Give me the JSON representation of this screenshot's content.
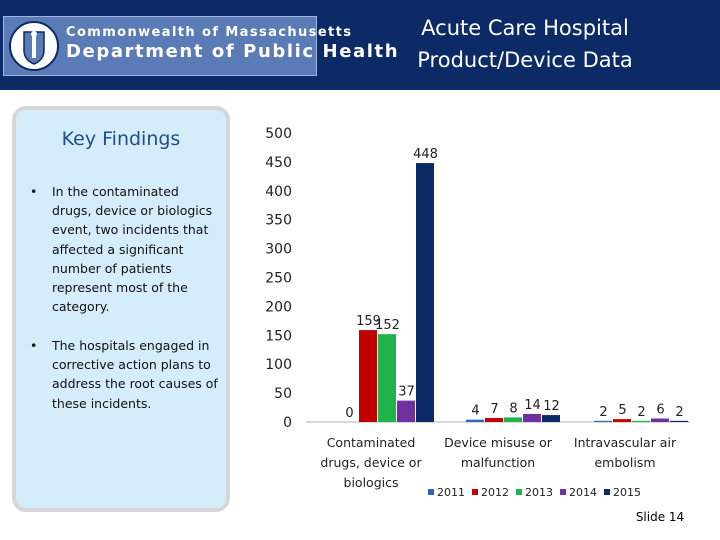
{
  "header": {
    "logo_line1": "Commonwealth of Massachusetts",
    "logo_line2": "Department of Public Health",
    "title_line1": "Acute Care Hospital",
    "title_line2": "Product/Device Data"
  },
  "findings": {
    "title": "Key Findings",
    "bullets": [
      "In the contaminated drugs, device or biologics event, two incidents that affected a significant number of patients represent most of the category.",
      "The hospitals engaged in corrective action plans to address the root causes of these incidents."
    ]
  },
  "chart_data": {
    "type": "bar",
    "categories": [
      "Contaminated drugs, device or biologics",
      "Device misuse or malfunction",
      "Intravascular air embolism"
    ],
    "series": [
      {
        "name": "2011",
        "color": "#2b67b5",
        "values": [
          0,
          4,
          2
        ]
      },
      {
        "name": "2012",
        "color": "#c00000",
        "values": [
          159,
          7,
          5
        ]
      },
      {
        "name": "2013",
        "color": "#22b24c",
        "values": [
          152,
          8,
          2
        ]
      },
      {
        "name": "2014",
        "color": "#7030a0",
        "values": [
          37,
          14,
          6
        ]
      },
      {
        "name": "2015",
        "color": "#0b2a66",
        "values": [
          448,
          12,
          2
        ]
      }
    ],
    "ylim": [
      0,
      500
    ],
    "yticks": [
      0,
      50,
      100,
      150,
      200,
      250,
      300,
      350,
      400,
      450,
      500
    ],
    "grid": false,
    "legend_position": "bottom"
  },
  "footer": {
    "slide_label": "Slide 14"
  }
}
